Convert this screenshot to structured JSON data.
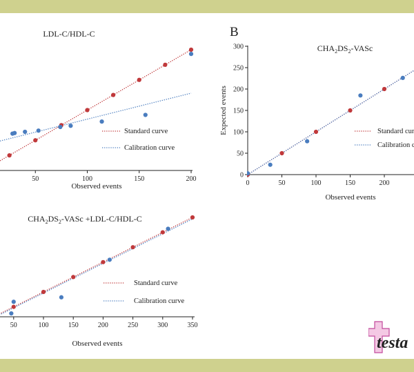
{
  "frame": {
    "band_color": "#cfd18e"
  },
  "colors": {
    "standard": "#c0393b",
    "calibration": "#4a7dbf",
    "axis": "#222222"
  },
  "watermark": {
    "text": "testa",
    "color": "#c24a9c"
  },
  "chart_data": [
    {
      "id": "ldl",
      "type": "scatter",
      "panel_label": "",
      "title": "LDL-C/HDL-C",
      "xlabel": "Observed events",
      "ylabel": "",
      "xlim": [
        0,
        200
      ],
      "x_ticks": [
        "50",
        "100",
        "150",
        "200"
      ],
      "y_ticks": [],
      "legend": [
        "Standard curve",
        "Calibration curve"
      ],
      "series": [
        {
          "name": "Standard curve",
          "style": "dotted-line-with-points",
          "x": [
            0,
            25,
            50,
            75,
            100,
            125,
            150,
            175,
            200
          ],
          "y": [
            0,
            25,
            50,
            75,
            100,
            125,
            150,
            175,
            200
          ]
        },
        {
          "name": "Calibration curve",
          "style": "dotted-fit-line",
          "x": [
            0,
            200
          ],
          "y": [
            42,
            128
          ]
        },
        {
          "name": "",
          "style": "points",
          "x": [
            2,
            28,
            30,
            40,
            53,
            74,
            84,
            114,
            156,
            200
          ],
          "y": [
            55,
            61,
            62,
            64,
            66,
            72,
            74,
            81,
            92,
            193
          ]
        }
      ]
    },
    {
      "id": "cha",
      "type": "scatter",
      "panel_label": "B",
      "title": "CHA2DS2-VASc",
      "xlabel": "Observed events",
      "ylabel": "Expected events",
      "xlim": [
        0,
        300
      ],
      "ylim": [
        0,
        300
      ],
      "x_ticks": [
        "0",
        "50",
        "100",
        "150",
        "200"
      ],
      "y_ticks": [
        "0",
        "50",
        "100",
        "150",
        "200",
        "250",
        "300"
      ],
      "legend": [
        "Standard curve",
        "Calibration cu"
      ],
      "series": [
        {
          "name": "Standard curve",
          "style": "dotted-line-with-points",
          "x": [
            0,
            50,
            100,
            150,
            200,
            250
          ],
          "y": [
            0,
            50,
            100,
            150,
            200,
            250
          ]
        },
        {
          "name": "Calibration curve",
          "style": "dotted-fit-line",
          "x": [
            0,
            250
          ],
          "y": [
            0,
            250
          ]
        },
        {
          "name": "",
          "style": "points",
          "x": [
            0,
            33,
            87,
            165,
            227
          ],
          "y": [
            3,
            23,
            78,
            185,
            226
          ]
        }
      ]
    },
    {
      "id": "combo",
      "type": "scatter",
      "panel_label": "",
      "title": "CHA2DS2-VASc +LDL-C/HDL-C",
      "xlabel": "Observed events",
      "ylabel": "",
      "xlim": [
        0,
        350
      ],
      "x_ticks": [
        "50",
        "100",
        "150",
        "200",
        "250",
        "300",
        "350"
      ],
      "y_ticks": [],
      "legend": [
        "Standard curve",
        "Calibration curve"
      ],
      "series": [
        {
          "name": "Standard curve",
          "style": "dotted-line-with-points",
          "x": [
            0,
            50,
            100,
            150,
            200,
            250,
            300,
            350
          ],
          "y": [
            0,
            50,
            100,
            150,
            200,
            250,
            300,
            350
          ]
        },
        {
          "name": "Calibration curve",
          "style": "dotted-fit-line",
          "x": [
            0,
            350
          ],
          "y": [
            -3,
            345
          ]
        },
        {
          "name": "",
          "style": "points",
          "x": [
            46,
            50,
            130,
            211,
            309
          ],
          "y": [
            28,
            67,
            82,
            208,
            312
          ]
        }
      ]
    }
  ]
}
